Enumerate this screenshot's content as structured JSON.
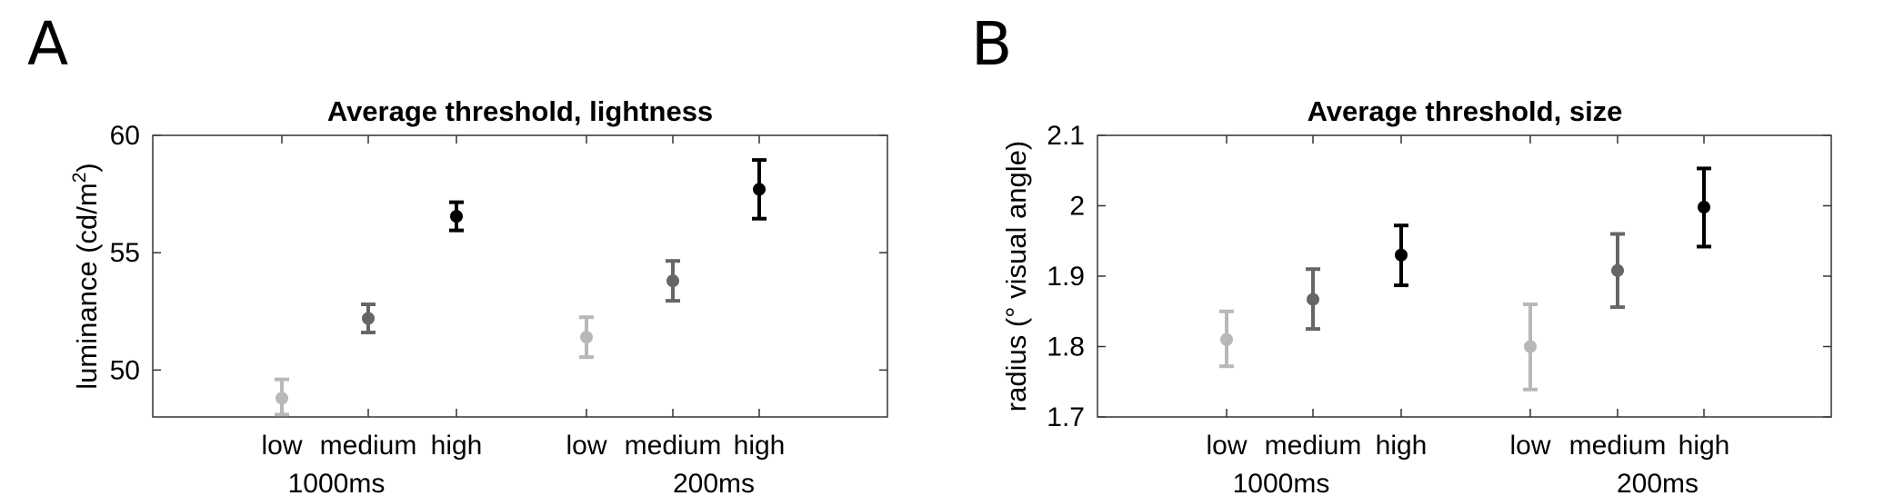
{
  "panels": {
    "a_letter": "A",
    "b_letter": "B"
  },
  "chart_data": [
    {
      "type": "errorbar",
      "title": "Average threshold, lightness",
      "ylabel": "luminance (cd/m",
      "ylabel_superscript": "2",
      "ylabel_close": ")",
      "ylim": [
        48,
        60
      ],
      "yticks": [
        50,
        55,
        60
      ],
      "grid": false,
      "x_category_labels": [
        "low",
        "medium",
        "high",
        "low",
        "medium",
        "high"
      ],
      "group_labels": [
        "1000ms",
        "200ms"
      ],
      "points": [
        {
          "group": "1000ms",
          "level": "low",
          "mean": 48.8,
          "lower": 48.1,
          "upper": 49.6,
          "color": "#b8b8b8"
        },
        {
          "group": "1000ms",
          "level": "medium",
          "mean": 52.2,
          "lower": 51.6,
          "upper": 52.8,
          "color": "#666666"
        },
        {
          "group": "1000ms",
          "level": "high",
          "mean": 56.55,
          "lower": 55.95,
          "upper": 57.15,
          "color": "#000000"
        },
        {
          "group": "200ms",
          "level": "low",
          "mean": 51.4,
          "lower": 50.55,
          "upper": 52.25,
          "color": "#b8b8b8"
        },
        {
          "group": "200ms",
          "level": "medium",
          "mean": 53.8,
          "lower": 52.95,
          "upper": 54.65,
          "color": "#666666"
        },
        {
          "group": "200ms",
          "level": "high",
          "mean": 57.7,
          "lower": 56.45,
          "upper": 58.95,
          "color": "#000000"
        }
      ]
    },
    {
      "type": "errorbar",
      "title": "Average threshold, size",
      "ylabel": "radius (° visual angle)",
      "ylim": [
        1.7,
        2.1
      ],
      "yticks": [
        1.7,
        1.8,
        1.9,
        2,
        2.1
      ],
      "ytick_labels": [
        "1.7",
        "1.8",
        "1.9",
        "2",
        "2.1"
      ],
      "grid": false,
      "x_category_labels": [
        "low",
        "medium",
        "high",
        "low",
        "medium",
        "high"
      ],
      "group_labels": [
        "1000ms",
        "200ms"
      ],
      "points": [
        {
          "group": "1000ms",
          "level": "low",
          "mean": 1.81,
          "lower": 1.772,
          "upper": 1.85,
          "color": "#b8b8b8"
        },
        {
          "group": "1000ms",
          "level": "medium",
          "mean": 1.867,
          "lower": 1.825,
          "upper": 1.91,
          "color": "#666666"
        },
        {
          "group": "1000ms",
          "level": "high",
          "mean": 1.93,
          "lower": 1.887,
          "upper": 1.972,
          "color": "#000000"
        },
        {
          "group": "200ms",
          "level": "low",
          "mean": 1.8,
          "lower": 1.739,
          "upper": 1.86,
          "color": "#b8b8b8"
        },
        {
          "group": "200ms",
          "level": "medium",
          "mean": 1.908,
          "lower": 1.856,
          "upper": 1.96,
          "color": "#666666"
        },
        {
          "group": "200ms",
          "level": "high",
          "mean": 1.998,
          "lower": 1.942,
          "upper": 2.053,
          "color": "#000000"
        }
      ]
    }
  ]
}
